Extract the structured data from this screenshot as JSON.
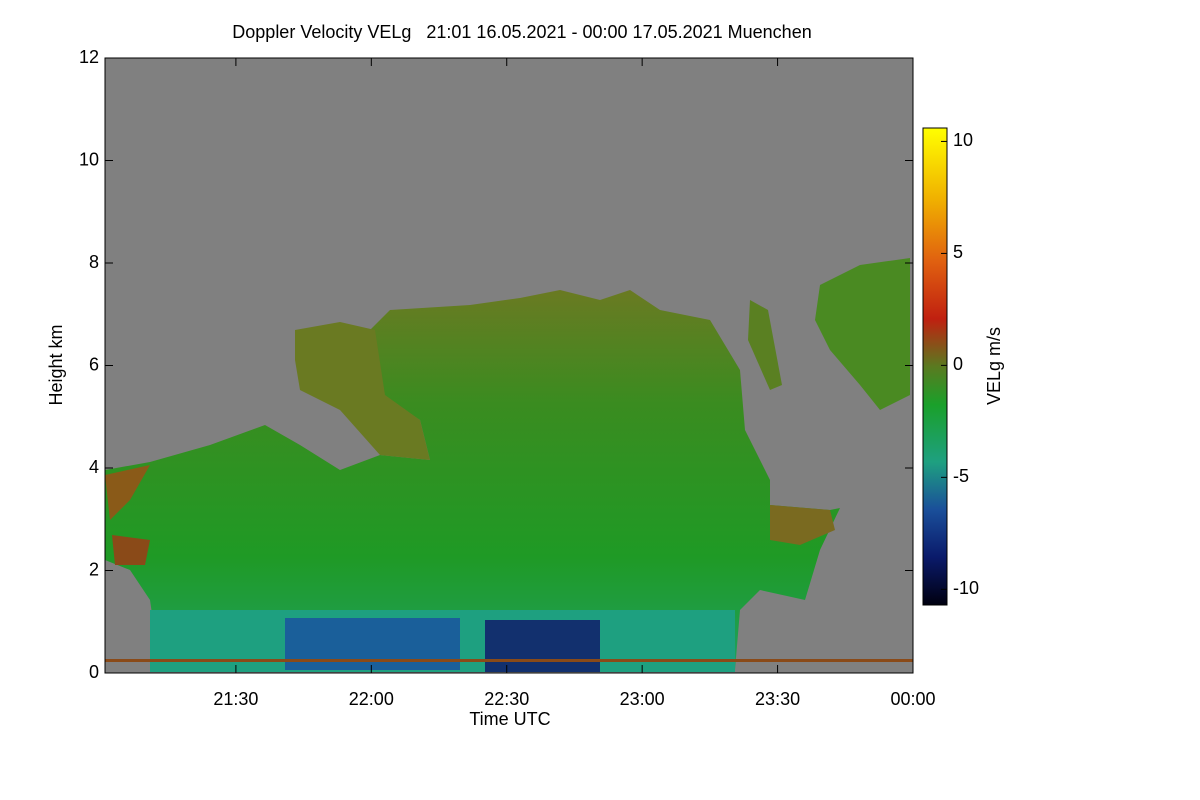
{
  "chart_data": {
    "type": "heatmap",
    "title": "Doppler Velocity VELg   21:01 16.05.2021 - 00:00 17.05.2021 Muenchen",
    "x_label": "Time UTC",
    "y_label": "Height km",
    "colorbar_label": "VELg m/s",
    "xlim": [
      21.0167,
      24
    ],
    "xticks": [
      {
        "value": 21.5,
        "label": "21:30"
      },
      {
        "value": 22,
        "label": "22:00"
      },
      {
        "value": 22.5,
        "label": "22:30"
      },
      {
        "value": 23,
        "label": "23:00"
      },
      {
        "value": 23.5,
        "label": "23:30"
      },
      {
        "value": 24,
        "label": "00:00"
      }
    ],
    "ylim": [
      0,
      12
    ],
    "yticks": [
      0,
      2,
      4,
      6,
      8,
      10,
      12
    ],
    "clim": [
      -10.7,
      10.6
    ],
    "cticks": [
      -10,
      -5,
      0,
      5,
      10
    ]
  }
}
